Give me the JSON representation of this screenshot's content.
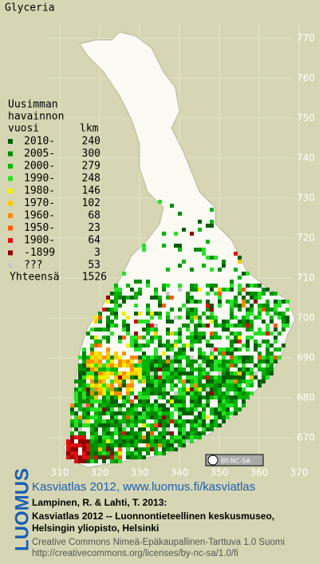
{
  "map": {
    "title": "Glyceria",
    "legend": {
      "heading": [
        "Uusimman",
        "havainnon",
        "vuosi"
      ],
      "count_heading": "lkm",
      "rows": [
        {
          "label": "2010-",
          "count": 240,
          "color": "#005e00"
        },
        {
          "label": "2005-",
          "count": 300,
          "color": "#008c00"
        },
        {
          "label": "2000-",
          "count": 279,
          "color": "#00b400"
        },
        {
          "label": "1990-",
          "count": 248,
          "color": "#28e028"
        },
        {
          "label": "1980-",
          "count": 146,
          "color": "#f0f000"
        },
        {
          "label": "1970-",
          "count": 102,
          "color": "#ffc800"
        },
        {
          "label": "1960-",
          "count": 68,
          "color": "#ff8c00"
        },
        {
          "label": "1950-",
          "count": 23,
          "color": "#ff5a00"
        },
        {
          "label": "1900-",
          "count": 64,
          "color": "#e01010"
        },
        {
          "label": "-1899",
          "count": 3,
          "color": "#8c0000"
        },
        {
          "label": "???",
          "count": 53,
          "color": "#c8c8c8"
        }
      ],
      "total_label": "Yhteensä",
      "total": 1526
    },
    "xticks": [
      310,
      320,
      330,
      340,
      350,
      360,
      370
    ],
    "yticks": [
      770,
      760,
      750,
      740,
      730,
      720,
      710,
      700,
      690,
      680,
      670
    ],
    "license_badge": "BY-NC-SA"
  },
  "footer": {
    "brand": "LUOMUS",
    "link": "Kasviatlas 2012, www.luomus.fi/kasviatlas",
    "citation": [
      "Lampinen, R. & Lahti, T. 2013:",
      "Kasviatlas 2012 -- Luonnontieteellinen keskusmuseo,",
      "Helsingin yliopisto, Helsinki"
    ],
    "license": [
      "Creative Commons Nimeä-Epäkaupallinen-Tarttuva 1.0 Suomi",
      "http://creativecommons.org/licenses/by-nc-sa/1.0/fi"
    ]
  }
}
